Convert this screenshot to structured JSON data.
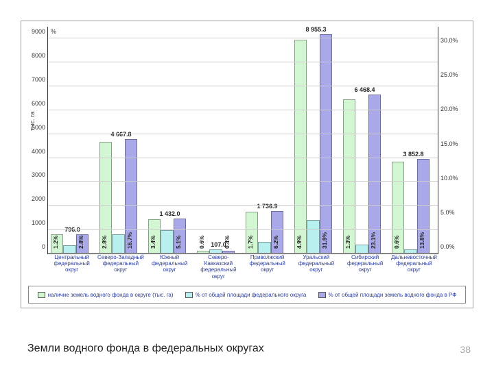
{
  "caption": "Земли водного фонда в федеральных округах",
  "page_number": "38",
  "chart": {
    "type": "bar",
    "left_axis": {
      "min": 0,
      "max": 9500,
      "ticks": [
        0,
        1000,
        2000,
        3000,
        4000,
        5000,
        6000,
        7000,
        8000,
        9000
      ],
      "title": "тыс. га"
    },
    "right_axis": {
      "min": 0,
      "max": 33,
      "ticks": [
        0,
        5,
        10,
        15,
        20,
        25,
        30
      ],
      "labels": [
        "0.0%",
        "5.0%",
        "10.0%",
        "15.0%",
        "20.0%",
        "25.0%",
        "30.0%"
      ]
    },
    "percent_sign": "%",
    "series": [
      {
        "name": "s1",
        "color": "#d2f6d2",
        "legend": "наличие земель водного фонда в округе (тыс. га)",
        "axis": "left"
      },
      {
        "name": "s2",
        "color": "#b8f0ef",
        "legend": "% от общей площади федерального округа",
        "axis": "right"
      },
      {
        "name": "s3",
        "color": "#a9a8e8",
        "legend": "% от общей площади земель водного фонда в РФ",
        "axis": "right"
      }
    ],
    "categories": [
      {
        "label": "Центральный федеральный округ",
        "top_label": "796.0",
        "v1": 796.0,
        "l1": "1.2%",
        "v2": 1.2,
        "l2": null,
        "v3": 2.8,
        "l3": "2.8%"
      },
      {
        "label": "Северо-Западный федеральный округ",
        "top_label": "4 667.8",
        "v1": 4667.8,
        "l1": "2.8%",
        "v2": 2.8,
        "l2": null,
        "v3": 16.7,
        "l3": "16.7%"
      },
      {
        "label": "Южный федеральный округ",
        "top_label": "1 432.0",
        "v1": 1432.0,
        "l1": "3.4%",
        "v2": 3.4,
        "l2": null,
        "v3": 5.1,
        "l3": "5.1%"
      },
      {
        "label": "Северо-Кавказский федеральный округ",
        "top_label": "107.0",
        "v1": 107.0,
        "l1": "0.6%",
        "v2": 0.6,
        "l2": null,
        "v3": 0.4,
        "l3": "0.4%"
      },
      {
        "label": "Приволжский федеральный округ",
        "top_label": "1 736.9",
        "v1": 1736.9,
        "l1": "1.7%",
        "v2": 1.7,
        "l2": null,
        "v3": 6.2,
        "l3": "6.2%"
      },
      {
        "label": "Уральский федеральный округ",
        "top_label": "8 955.3",
        "v1": 8955.3,
        "l1": "4.9%",
        "v2": 4.9,
        "l2": null,
        "v3": 31.9,
        "l3": "31.9%"
      },
      {
        "label": "Сибирский федеральный округ",
        "top_label": "6 468.4",
        "v1": 6468.4,
        "l1": "1.3%",
        "v2": 1.3,
        "l2": null,
        "v3": 23.1,
        "l3": "23.1%"
      },
      {
        "label": "Дальневосточный федеральный округ",
        "top_label": "3 852.8",
        "v1": 3852.8,
        "l1": "0.6%",
        "v2": 0.6,
        "l2": null,
        "v3": 13.8,
        "l3": "13.8%"
      }
    ],
    "grid_color": "#cccccc",
    "xlabel_color": "#2a3b9a",
    "font_size_tick": 9,
    "font_size_xlabel": 8
  }
}
